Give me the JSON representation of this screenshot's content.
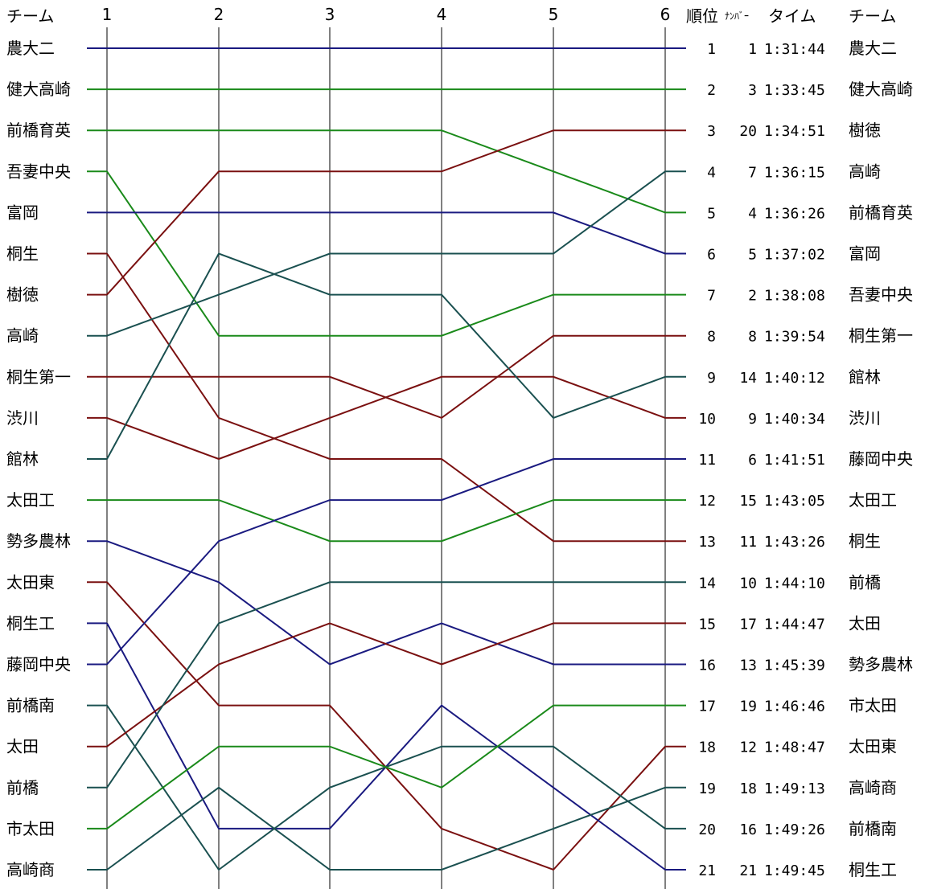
{
  "chart_data": {
    "type": "line",
    "headers": {
      "team_left": "チーム",
      "rank": "順位",
      "number": "ﾅﾝﾊﾞｰ",
      "time": "タイム",
      "team_right": "チーム"
    },
    "x": [
      "1",
      "2",
      "3",
      "4",
      "5",
      "6"
    ],
    "y_direction": "rank 1 at top",
    "ylim": [
      1,
      21
    ],
    "series": [
      {
        "name": "農大二",
        "color": "#1a1a80",
        "ranks": [
          1,
          1,
          1,
          1,
          1,
          1,
          1
        ]
      },
      {
        "name": "健大高崎",
        "color": "#1a8a1a",
        "ranks": [
          2,
          2,
          2,
          2,
          2,
          2,
          2
        ]
      },
      {
        "name": "前橋育英",
        "color": "#1a8a1a",
        "ranks": [
          3,
          3,
          3,
          3,
          3,
          4,
          5
        ]
      },
      {
        "name": "吾妻中央",
        "color": "#1a8a1a",
        "ranks": [
          4,
          4,
          8,
          8,
          8,
          7,
          7
        ]
      },
      {
        "name": "富岡",
        "color": "#1a1a80",
        "ranks": [
          5,
          5,
          5,
          5,
          5,
          5,
          6
        ]
      },
      {
        "name": "桐生",
        "color": "#7a1010",
        "ranks": [
          6,
          6,
          10,
          11,
          11,
          13,
          13
        ]
      },
      {
        "name": "樹徳",
        "color": "#7a1010",
        "ranks": [
          7,
          7,
          4,
          4,
          4,
          3,
          3
        ]
      },
      {
        "name": "高崎",
        "color": "#1a5050",
        "ranks": [
          8,
          8,
          7,
          6,
          6,
          6,
          4
        ]
      },
      {
        "name": "桐生第一",
        "color": "#7a1010",
        "ranks": [
          9,
          9,
          9,
          9,
          10,
          8,
          8
        ]
      },
      {
        "name": "渋川",
        "color": "#7a1010",
        "ranks": [
          10,
          10,
          11,
          10,
          9,
          9,
          10
        ]
      },
      {
        "name": "館林",
        "color": "#1a5050",
        "ranks": [
          11,
          11,
          6,
          7,
          7,
          10,
          9
        ]
      },
      {
        "name": "太田工",
        "color": "#1a8a1a",
        "ranks": [
          12,
          12,
          12,
          13,
          13,
          12,
          12
        ]
      },
      {
        "name": "勢多農林",
        "color": "#1a1a80",
        "ranks": [
          13,
          13,
          14,
          16,
          15,
          16,
          16
        ]
      },
      {
        "name": "太田東",
        "color": "#7a1010",
        "ranks": [
          14,
          14,
          17,
          17,
          20,
          21,
          18
        ]
      },
      {
        "name": "桐生工",
        "color": "#1a1a80",
        "ranks": [
          15,
          15,
          20,
          20,
          17,
          19,
          21
        ]
      },
      {
        "name": "藤岡中央",
        "color": "#1a1a80",
        "ranks": [
          16,
          16,
          13,
          12,
          12,
          11,
          11
        ]
      },
      {
        "name": "前橋南",
        "color": "#1a5050",
        "ranks": [
          17,
          17,
          21,
          19,
          18,
          18,
          20
        ]
      },
      {
        "name": "太田",
        "color": "#7a1010",
        "ranks": [
          18,
          18,
          16,
          15,
          16,
          15,
          15
        ]
      },
      {
        "name": "前橋",
        "color": "#1a5050",
        "ranks": [
          19,
          19,
          15,
          14,
          14,
          14,
          14
        ]
      },
      {
        "name": "市太田",
        "color": "#1a8a1a",
        "ranks": [
          20,
          20,
          18,
          18,
          19,
          17,
          17
        ]
      },
      {
        "name": "高崎商",
        "color": "#1a5050",
        "ranks": [
          21,
          21,
          19,
          21,
          21,
          20,
          19
        ]
      }
    ],
    "results": [
      {
        "rank": 1,
        "number": 1,
        "time": "1:31:44",
        "team": "農大二"
      },
      {
        "rank": 2,
        "number": 3,
        "time": "1:33:45",
        "team": "健大高崎"
      },
      {
        "rank": 3,
        "number": 20,
        "time": "1:34:51",
        "team": "樹徳"
      },
      {
        "rank": 4,
        "number": 7,
        "time": "1:36:15",
        "team": "高崎"
      },
      {
        "rank": 5,
        "number": 4,
        "time": "1:36:26",
        "team": "前橋育英"
      },
      {
        "rank": 6,
        "number": 5,
        "time": "1:37:02",
        "team": "富岡"
      },
      {
        "rank": 7,
        "number": 2,
        "time": "1:38:08",
        "team": "吾妻中央"
      },
      {
        "rank": 8,
        "number": 8,
        "time": "1:39:54",
        "team": "桐生第一"
      },
      {
        "rank": 9,
        "number": 14,
        "time": "1:40:12",
        "team": "館林"
      },
      {
        "rank": 10,
        "number": 9,
        "time": "1:40:34",
        "team": "渋川"
      },
      {
        "rank": 11,
        "number": 6,
        "time": "1:41:51",
        "team": "藤岡中央"
      },
      {
        "rank": 12,
        "number": 15,
        "time": "1:43:05",
        "team": "太田工"
      },
      {
        "rank": 13,
        "number": 11,
        "time": "1:43:26",
        "team": "桐生"
      },
      {
        "rank": 14,
        "number": 10,
        "time": "1:44:10",
        "team": "前橋"
      },
      {
        "rank": 15,
        "number": 17,
        "time": "1:44:47",
        "team": "太田"
      },
      {
        "rank": 16,
        "number": 13,
        "time": "1:45:39",
        "team": "勢多農林"
      },
      {
        "rank": 17,
        "number": 19,
        "time": "1:46:46",
        "team": "市太田"
      },
      {
        "rank": 18,
        "number": 12,
        "time": "1:48:47",
        "team": "太田東"
      },
      {
        "rank": 19,
        "number": 18,
        "time": "1:49:13",
        "team": "高崎商"
      },
      {
        "rank": 20,
        "number": 16,
        "time": "1:49:26",
        "team": "前橋南"
      },
      {
        "rank": 21,
        "number": 21,
        "time": "1:49:45",
        "team": "桐生工"
      }
    ]
  }
}
